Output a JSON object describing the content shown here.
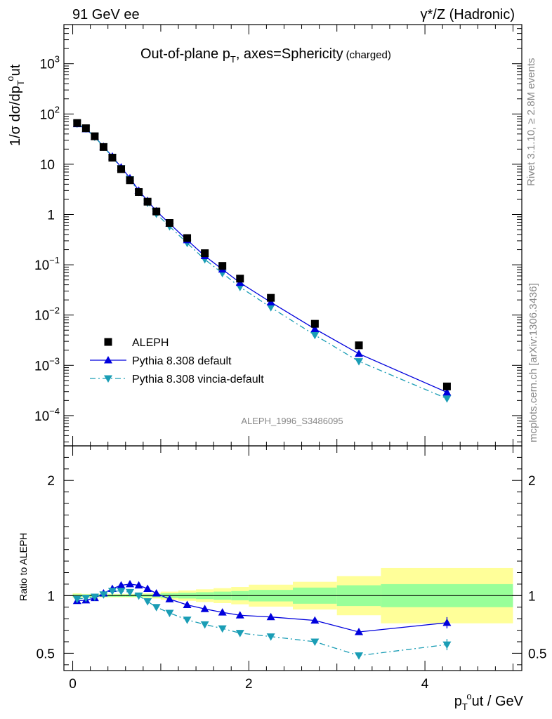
{
  "header": {
    "left": "91 GeV ee",
    "right": "γ*/Z (Hadronic)"
  },
  "side_labels": {
    "rivet": "Rivet 3.1.10, ≥ 2.8M events",
    "mcplots": "mcplots.cern.ch [arXiv:1306.3436]"
  },
  "chart_data": [
    {
      "type": "scatter",
      "title": "Out-of-plane p_T, axes=Sphericity",
      "title_suffix": "(charged)",
      "ylabel": "1/σ dσ/dp_T^out",
      "yscale": "log",
      "ylim": [
        2.5e-05,
        6000
      ],
      "xlim": [
        -0.1,
        5.1
      ],
      "yticks": [
        {
          "v": 0.0001,
          "label": "10",
          "sup": "−4"
        },
        {
          "v": 0.001,
          "label": "10",
          "sup": "−3"
        },
        {
          "v": 0.01,
          "label": "10",
          "sup": "−2"
        },
        {
          "v": 0.1,
          "label": "10",
          "sup": "−1"
        },
        {
          "v": 1,
          "label": "1",
          "sup": ""
        },
        {
          "v": 10,
          "label": "10",
          "sup": ""
        },
        {
          "v": 100,
          "label": "10",
          "sup": "2"
        },
        {
          "v": 1000,
          "label": "10",
          "sup": "3"
        }
      ],
      "watermark": "ALEPH_1996_S3486095",
      "legend_placement": "bottom-left",
      "series": [
        {
          "name": "ALEPH",
          "marker": "square",
          "color": "#000000",
          "x": [
            0.05,
            0.15,
            0.25,
            0.35,
            0.45,
            0.55,
            0.65,
            0.75,
            0.85,
            0.95,
            1.1,
            1.3,
            1.5,
            1.7,
            1.9,
            2.25,
            2.75,
            3.25,
            4.25
          ],
          "y": [
            66,
            52,
            36,
            22,
            13.5,
            8,
            4.8,
            2.8,
            1.8,
            1.15,
            0.68,
            0.34,
            0.17,
            0.095,
            0.053,
            0.022,
            0.0067,
            0.0025,
            0.00038
          ]
        },
        {
          "name": "Pythia 8.308 default",
          "marker": "triangle-up",
          "line": "solid",
          "color": "#0000dd",
          "x": [
            0.05,
            0.15,
            0.25,
            0.35,
            0.45,
            0.55,
            0.65,
            0.75,
            0.85,
            0.95,
            1.1,
            1.3,
            1.5,
            1.7,
            1.9,
            2.25,
            2.75,
            3.25,
            4.25
          ],
          "y": [
            63,
            50,
            35.3,
            22.4,
            14.3,
            8.7,
            5.3,
            3.0,
            1.87,
            1.17,
            0.66,
            0.31,
            0.15,
            0.081,
            0.044,
            0.018,
            0.0053,
            0.0017,
            0.00029
          ]
        },
        {
          "name": "Pythia 8.308 vincia-default",
          "marker": "triangle-down",
          "line": "dashdot",
          "color": "#1a9db5",
          "x": [
            0.05,
            0.15,
            0.25,
            0.35,
            0.45,
            0.55,
            0.65,
            0.75,
            0.85,
            0.95,
            1.1,
            1.3,
            1.5,
            1.7,
            1.9,
            2.25,
            2.75,
            3.25,
            4.25
          ],
          "y": [
            64,
            51,
            35,
            22.2,
            14.0,
            8.3,
            5.0,
            2.8,
            1.7,
            1.03,
            0.58,
            0.27,
            0.128,
            0.068,
            0.036,
            0.0142,
            0.004,
            0.0012,
            0.000218
          ]
        }
      ]
    },
    {
      "type": "scatter",
      "ylabel": "Ratio to ALEPH",
      "xlabel": "p_T^out / GeV",
      "ylim": [
        0.35,
        2.3
      ],
      "xlim": [
        -0.1,
        5.1
      ],
      "yticks": [
        0.5,
        1,
        2
      ],
      "xticks": [
        0,
        2,
        4
      ],
      "bands": {
        "edges": [
          0.0,
          0.1,
          0.2,
          0.3,
          0.4,
          0.5,
          0.6,
          0.7,
          0.8,
          0.9,
          1.0,
          1.2,
          1.4,
          1.6,
          1.8,
          2.0,
          2.5,
          3.0,
          3.5,
          5.0
        ],
        "green_halfwidth": [
          0.012,
          0.01,
          0.01,
          0.01,
          0.01,
          0.01,
          0.01,
          0.01,
          0.012,
          0.015,
          0.02,
          0.025,
          0.03,
          0.035,
          0.04,
          0.05,
          0.07,
          0.09,
          0.1
        ],
        "yellow_halfwidth": [
          0.02,
          0.015,
          0.015,
          0.015,
          0.015,
          0.015,
          0.015,
          0.015,
          0.02,
          0.025,
          0.035,
          0.045,
          0.055,
          0.065,
          0.075,
          0.095,
          0.12,
          0.17,
          0.24
        ],
        "green_color": "#99ff99",
        "yellow_color": "#ffff99"
      },
      "series": [
        {
          "name": "Pythia 8.308 default",
          "marker": "triangle-up",
          "line": "solid",
          "color": "#0000dd",
          "x": [
            0.05,
            0.15,
            0.25,
            0.35,
            0.45,
            0.55,
            0.65,
            0.75,
            0.85,
            0.95,
            1.1,
            1.3,
            1.5,
            1.7,
            1.9,
            2.25,
            2.75,
            3.25,
            4.25
          ],
          "y": [
            0.955,
            0.96,
            0.98,
            1.02,
            1.06,
            1.09,
            1.1,
            1.09,
            1.06,
            1.02,
            0.97,
            0.92,
            0.885,
            0.855,
            0.83,
            0.815,
            0.785,
            0.685,
            0.765
          ]
        },
        {
          "name": "Pythia 8.308 vincia-default",
          "marker": "triangle-down",
          "line": "dashdot",
          "color": "#1a9db5",
          "x": [
            0.05,
            0.15,
            0.25,
            0.35,
            0.45,
            0.55,
            0.65,
            0.75,
            0.85,
            0.95,
            1.1,
            1.3,
            1.5,
            1.7,
            1.9,
            2.25,
            2.75,
            3.25,
            4.25
          ],
          "y": [
            0.97,
            0.98,
            0.99,
            1.01,
            1.04,
            1.04,
            1.03,
            1.0,
            0.95,
            0.9,
            0.85,
            0.79,
            0.75,
            0.715,
            0.675,
            0.645,
            0.6,
            0.48,
            0.575
          ]
        }
      ]
    }
  ],
  "colors": {
    "aleph": "#000000",
    "default": "#0000dd",
    "vincia": "#1a9db5"
  }
}
